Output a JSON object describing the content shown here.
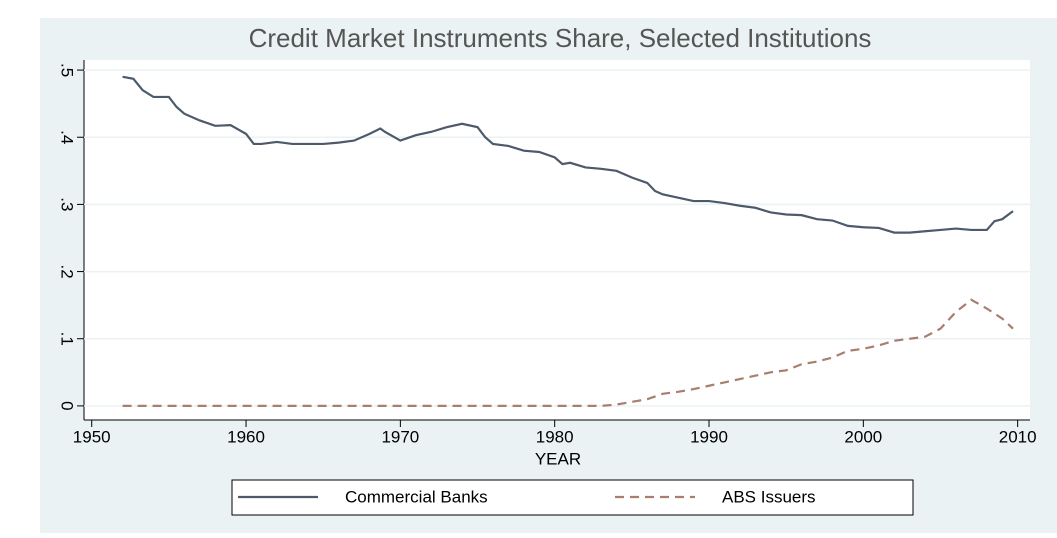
{
  "chart_data": {
    "type": "line",
    "title": "Credit Market Instruments Share, Selected Institutions",
    "x_label": "YEAR",
    "xlim": [
      1949.5,
      2010.8
    ],
    "xticks": [
      1950,
      1960,
      1970,
      1980,
      1990,
      2000,
      2010
    ],
    "ylim": [
      -0.021,
      0.515
    ],
    "yticks": [
      0,
      {
        "value": 0.1,
        "label": ".1"
      },
      {
        "value": 0.2,
        "label": ".2"
      },
      {
        "value": 0.3,
        "label": ".3"
      },
      {
        "value": 0.4,
        "label": ".4"
      },
      {
        "value": 0.5,
        "label": ".5"
      }
    ],
    "grid": true,
    "legend": "bottom",
    "series": [
      {
        "name": "Commercial Banks",
        "color": "#4d5a6b",
        "dash": "solid",
        "x": [
          1952,
          1952.7,
          1953.3,
          1954,
          1955,
          1955.5,
          1956,
          1957,
          1958,
          1959,
          1960,
          1960.5,
          1961,
          1962,
          1963,
          1964,
          1965,
          1966,
          1967,
          1968,
          1968.7,
          1969,
          1970,
          1971,
          1972,
          1973,
          1974,
          1975,
          1975.5,
          1976,
          1977,
          1978,
          1979,
          1980,
          1980.5,
          1981,
          1982,
          1983,
          1984,
          1985,
          1986,
          1986.5,
          1987,
          1988,
          1989,
          1990,
          1991,
          1992,
          1993,
          1994,
          1995,
          1996,
          1997,
          1998,
          1999,
          2000,
          2001,
          2002,
          2003,
          2004,
          2005,
          2006,
          2007,
          2008,
          2008.5,
          2009,
          2009.7
        ],
        "values": [
          0.49,
          0.487,
          0.47,
          0.46,
          0.46,
          0.445,
          0.435,
          0.425,
          0.417,
          0.418,
          0.405,
          0.39,
          0.39,
          0.393,
          0.39,
          0.39,
          0.39,
          0.392,
          0.395,
          0.405,
          0.413,
          0.408,
          0.395,
          0.403,
          0.408,
          0.415,
          0.42,
          0.415,
          0.4,
          0.39,
          0.387,
          0.38,
          0.378,
          0.37,
          0.36,
          0.362,
          0.355,
          0.353,
          0.35,
          0.34,
          0.332,
          0.32,
          0.315,
          0.31,
          0.305,
          0.305,
          0.302,
          0.298,
          0.295,
          0.288,
          0.285,
          0.284,
          0.278,
          0.276,
          0.268,
          0.266,
          0.265,
          0.258,
          0.258,
          0.26,
          0.262,
          0.264,
          0.262,
          0.262,
          0.275,
          0.278,
          0.29
        ]
      },
      {
        "name": "ABS Issuers",
        "color": "#a87e6e",
        "dash": "dashed",
        "x": [
          1952,
          1983,
          1984,
          1985,
          1986,
          1987,
          1988,
          1989,
          1990,
          1991,
          1992,
          1993,
          1994,
          1995,
          1996,
          1997,
          1998,
          1999,
          2000,
          2001,
          2002,
          2003,
          2004,
          2005,
          2006,
          2007,
          2008,
          2009,
          2009.7
        ],
        "values": [
          0,
          0,
          0.002,
          0.006,
          0.01,
          0.018,
          0.021,
          0.025,
          0.03,
          0.035,
          0.04,
          0.045,
          0.05,
          0.053,
          0.062,
          0.066,
          0.072,
          0.082,
          0.085,
          0.09,
          0.097,
          0.1,
          0.103,
          0.115,
          0.14,
          0.158,
          0.145,
          0.13,
          0.115
        ]
      }
    ]
  }
}
